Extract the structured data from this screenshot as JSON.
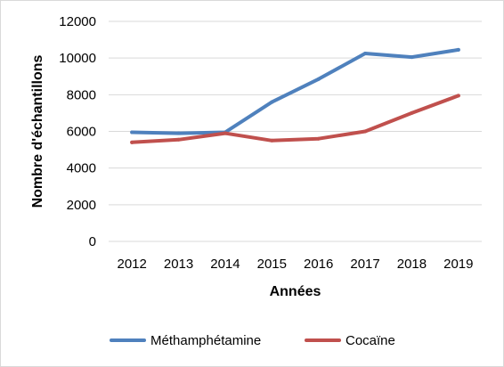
{
  "chart_data": {
    "type": "line",
    "title": "",
    "xlabel": "Années",
    "ylabel": "Nombre d'échantillons",
    "categories": [
      "2012",
      "2013",
      "2014",
      "2015",
      "2016",
      "2017",
      "2018",
      "2019"
    ],
    "ylim": [
      0,
      12000
    ],
    "yticks": [
      "0",
      "2000",
      "4000",
      "6000",
      "8000",
      "10000",
      "12000"
    ],
    "grid": "horizontal",
    "legend": "bottom",
    "series": [
      {
        "name": "Méthamphétamine",
        "color": "#4f81bd",
        "values": [
          5950,
          5900,
          5950,
          7600,
          8850,
          10250,
          10050,
          10450
        ]
      },
      {
        "name": "Cocaïne",
        "color": "#c0504d",
        "values": [
          5400,
          5550,
          5900,
          5500,
          5600,
          6000,
          7000,
          7950
        ]
      }
    ]
  }
}
